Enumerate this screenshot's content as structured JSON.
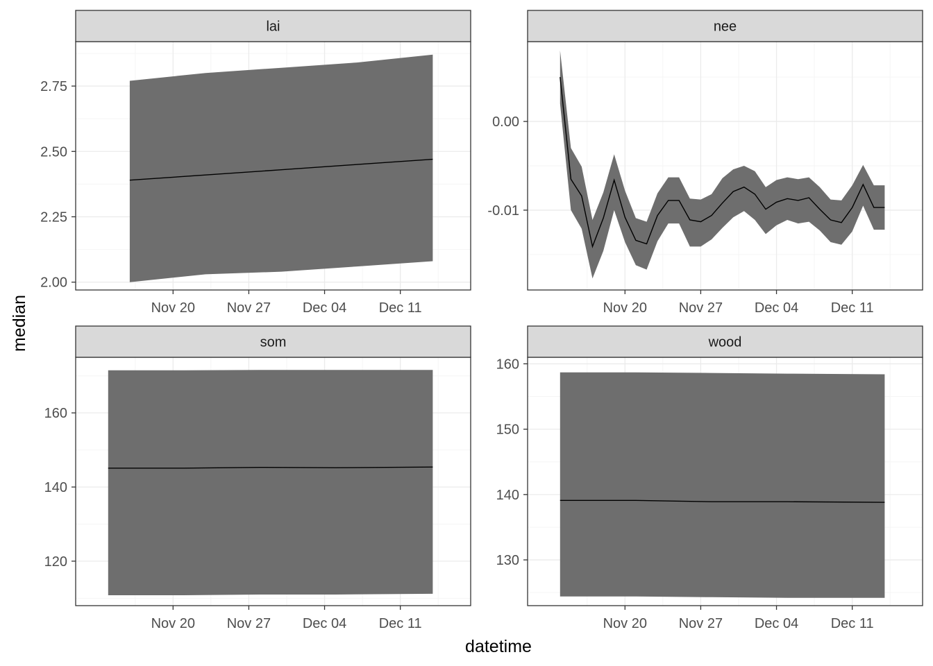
{
  "axes": {
    "x_title": "datetime",
    "y_title": "median"
  },
  "colors": {
    "band": "#6e6e6e",
    "line": "#000000",
    "strip_fill": "#d9d9d9",
    "grid_major": "#ebebeb",
    "grid_minor": "#f5f5f5",
    "panel_border": "#333333"
  },
  "chart_data": [
    {
      "type": "area",
      "facet": "lai",
      "x": [
        "2023-11-16",
        "2023-11-23",
        "2023-11-30",
        "2023-12-07",
        "2023-12-14"
      ],
      "series": [
        {
          "values": [
            2.39,
            2.41,
            2.43,
            2.45,
            2.47
          ]
        },
        {
          "values": [
            2.0,
            2.03,
            2.04,
            2.06,
            2.08
          ],
          "band": "lower"
        },
        {
          "values": [
            2.77,
            2.8,
            2.82,
            2.84,
            2.87
          ],
          "band": "upper"
        }
      ],
      "x_ticks": [
        "Nov 20",
        "Nov 27",
        "Dec 04",
        "Dec 11"
      ],
      "y_ticks": [
        "2.00",
        "2.25",
        "2.50",
        "2.75"
      ],
      "ylim": [
        1.97,
        2.92
      ],
      "grid": true
    },
    {
      "type": "line",
      "facet": "nee",
      "x": [
        "2023-11-14",
        "2023-11-15",
        "2023-11-16",
        "2023-11-17",
        "2023-11-18",
        "2023-11-19",
        "2023-11-20",
        "2023-11-21",
        "2023-11-22",
        "2023-11-23",
        "2023-11-24",
        "2023-11-25",
        "2023-11-26",
        "2023-11-27",
        "2023-11-28",
        "2023-11-29",
        "2023-11-30",
        "2023-12-01",
        "2023-12-02",
        "2023-12-03",
        "2023-12-04",
        "2023-12-05",
        "2023-12-06",
        "2023-12-07",
        "2023-12-08",
        "2023-12-09",
        "2023-12-10",
        "2023-12-11",
        "2023-12-12",
        "2023-12-13",
        "2023-12-14"
      ],
      "series": [
        {
          "values": [
            0.005,
            -0.0065,
            -0.0084,
            -0.0141,
            -0.0109,
            -0.0066,
            -0.0108,
            -0.0134,
            -0.0138,
            -0.0106,
            -0.0089,
            -0.0089,
            -0.0111,
            -0.0113,
            -0.0106,
            -0.0092,
            -0.0079,
            -0.0074,
            -0.0082,
            -0.0099,
            -0.0091,
            -0.0087,
            -0.0089,
            -0.0086,
            -0.0099,
            -0.0111,
            -0.0114,
            -0.0097,
            -0.0071,
            -0.0097,
            -0.0097
          ]
        },
        {
          "values": [
            0.002,
            -0.01,
            -0.0121,
            -0.0177,
            -0.0146,
            -0.01,
            -0.0136,
            -0.0162,
            -0.0167,
            -0.0135,
            -0.0115,
            -0.0115,
            -0.0141,
            -0.0141,
            -0.0133,
            -0.012,
            -0.0108,
            -0.0101,
            -0.0111,
            -0.0127,
            -0.0117,
            -0.0111,
            -0.0115,
            -0.0113,
            -0.0123,
            -0.0136,
            -0.0139,
            -0.0124,
            -0.0095,
            -0.0122,
            -0.0122
          ],
          "band": "lower"
        },
        {
          "values": [
            0.008,
            -0.003,
            -0.0051,
            -0.0111,
            -0.008,
            -0.0037,
            -0.0078,
            -0.0109,
            -0.0113,
            -0.0081,
            -0.0063,
            -0.0063,
            -0.0087,
            -0.0088,
            -0.0082,
            -0.0064,
            -0.0054,
            -0.005,
            -0.0056,
            -0.0074,
            -0.0066,
            -0.0063,
            -0.0065,
            -0.0063,
            -0.0074,
            -0.0088,
            -0.0089,
            -0.0072,
            -0.0049,
            -0.0072,
            -0.0072
          ],
          "band": "upper"
        }
      ],
      "x_ticks": [
        "Nov 20",
        "Nov 27",
        "Dec 04",
        "Dec 11"
      ],
      "y_ticks": [
        "0.00",
        "-0.01"
      ],
      "ylim": [
        -0.019,
        0.009
      ],
      "grid": true
    },
    {
      "type": "area",
      "facet": "som",
      "x": [
        "2023-11-14",
        "2023-11-21",
        "2023-11-28",
        "2023-12-05",
        "2023-12-14"
      ],
      "series": [
        {
          "values": [
            145.1,
            145.1,
            145.3,
            145.2,
            145.4
          ]
        },
        {
          "values": [
            110.8,
            110.8,
            111.0,
            111.0,
            111.2
          ],
          "band": "lower"
        },
        {
          "values": [
            171.5,
            171.5,
            171.6,
            171.6,
            171.6
          ],
          "band": "upper"
        }
      ],
      "x_ticks": [
        "Nov 20",
        "Nov 27",
        "Dec 04",
        "Dec 11"
      ],
      "y_ticks": [
        "120",
        "140",
        "160"
      ],
      "ylim": [
        108,
        175
      ],
      "grid": true
    },
    {
      "type": "area",
      "facet": "wood",
      "x": [
        "2023-11-14",
        "2023-11-21",
        "2023-11-28",
        "2023-12-05",
        "2023-12-14"
      ],
      "series": [
        {
          "values": [
            139.1,
            139.1,
            138.9,
            138.9,
            138.8
          ]
        },
        {
          "values": [
            124.4,
            124.4,
            124.3,
            124.2,
            124.2
          ],
          "band": "lower"
        },
        {
          "values": [
            158.7,
            158.7,
            158.6,
            158.5,
            158.4
          ],
          "band": "upper"
        }
      ],
      "x_ticks": [
        "Nov 20",
        "Nov 27",
        "Dec 04",
        "Dec 11"
      ],
      "y_ticks": [
        "130",
        "140",
        "150",
        "160"
      ],
      "ylim": [
        123,
        161
      ],
      "grid": true
    }
  ]
}
